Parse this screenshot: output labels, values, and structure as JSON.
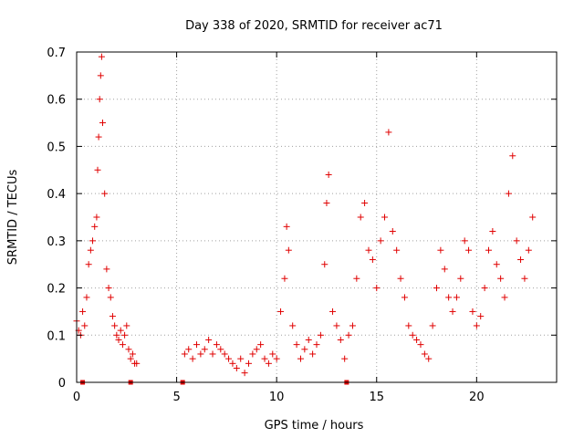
{
  "chart_data": {
    "type": "scatter",
    "title": "Day 338 of 2020, SRMTID for receiver ac71",
    "xlabel": "GPS time / hours",
    "ylabel": "SRMTID / TECUs",
    "xlim": [
      0,
      24
    ],
    "ylim": [
      0,
      0.7
    ],
    "xticks": [
      0,
      5,
      10,
      15,
      20
    ],
    "yticks": [
      0,
      0.1,
      0.2,
      0.3,
      0.4,
      0.5,
      0.6,
      0.7
    ],
    "xtick_labels": [
      "0",
      "5",
      "10",
      "15",
      "20"
    ],
    "ytick_labels": [
      "0",
      "0.1",
      "0.2",
      "0.3",
      "0.4",
      "0.5",
      "0.6",
      "0.7"
    ],
    "grid": true,
    "marker": "plus",
    "color": "#e00000",
    "series": [
      {
        "name": "SRMTID",
        "x": [
          0.0,
          0.1,
          0.2,
          0.3,
          0.4,
          0.5,
          0.6,
          0.7,
          0.8,
          0.9,
          1.0,
          1.05,
          1.1,
          1.15,
          1.2,
          1.25,
          1.3,
          1.4,
          1.5,
          1.6,
          1.7,
          1.8,
          1.9,
          2.0,
          2.1,
          2.2,
          2.3,
          2.4,
          2.5,
          2.6,
          2.7,
          2.8,
          2.9,
          3.0,
          5.4,
          5.6,
          5.8,
          6.0,
          6.2,
          6.4,
          6.6,
          6.8,
          7.0,
          7.2,
          7.4,
          7.6,
          7.8,
          8.0,
          8.2,
          8.4,
          8.6,
          8.8,
          9.0,
          9.2,
          9.4,
          9.6,
          9.8,
          10.0,
          10.2,
          10.4,
          10.5,
          10.6,
          10.8,
          11.0,
          11.2,
          11.4,
          11.6,
          11.8,
          12.0,
          12.2,
          12.4,
          12.5,
          12.6,
          12.8,
          13.0,
          13.2,
          13.4,
          13.6,
          13.8,
          14.0,
          14.2,
          14.4,
          14.6,
          14.8,
          15.0,
          15.2,
          15.4,
          15.6,
          15.8,
          16.0,
          16.2,
          16.4,
          16.6,
          16.8,
          17.0,
          17.2,
          17.4,
          17.6,
          17.8,
          18.0,
          18.2,
          18.4,
          18.6,
          18.8,
          19.0,
          19.2,
          19.4,
          19.6,
          19.8,
          20.0,
          20.2,
          20.4,
          20.6,
          20.8,
          21.0,
          21.2,
          21.4,
          21.6,
          21.8,
          22.0,
          22.2,
          22.4,
          22.6,
          22.8
        ],
        "y": [
          0.13,
          0.11,
          0.1,
          0.15,
          0.12,
          0.18,
          0.25,
          0.28,
          0.3,
          0.33,
          0.35,
          0.45,
          0.52,
          0.6,
          0.65,
          0.69,
          0.55,
          0.4,
          0.24,
          0.2,
          0.18,
          0.14,
          0.12,
          0.1,
          0.09,
          0.11,
          0.08,
          0.1,
          0.12,
          0.07,
          0.05,
          0.06,
          0.04,
          0.04,
          0.06,
          0.07,
          0.05,
          0.08,
          0.06,
          0.07,
          0.09,
          0.06,
          0.08,
          0.07,
          0.06,
          0.05,
          0.04,
          0.03,
          0.05,
          0.02,
          0.04,
          0.06,
          0.07,
          0.08,
          0.05,
          0.04,
          0.06,
          0.05,
          0.15,
          0.22,
          0.33,
          0.28,
          0.12,
          0.08,
          0.05,
          0.07,
          0.09,
          0.06,
          0.08,
          0.1,
          0.25,
          0.38,
          0.44,
          0.15,
          0.12,
          0.09,
          0.05,
          0.1,
          0.12,
          0.22,
          0.35,
          0.38,
          0.28,
          0.26,
          0.2,
          0.3,
          0.35,
          0.53,
          0.32,
          0.28,
          0.22,
          0.18,
          0.12,
          0.1,
          0.09,
          0.08,
          0.06,
          0.05,
          0.12,
          0.2,
          0.28,
          0.24,
          0.18,
          0.15,
          0.18,
          0.22,
          0.3,
          0.28,
          0.15,
          0.12,
          0.14,
          0.2,
          0.28,
          0.32,
          0.25,
          0.22,
          0.18,
          0.4,
          0.48,
          0.3,
          0.26,
          0.22,
          0.28,
          0.35
        ]
      }
    ],
    "markers_at_zero": [
      0.3,
      2.7,
      5.3,
      13.5
    ]
  }
}
